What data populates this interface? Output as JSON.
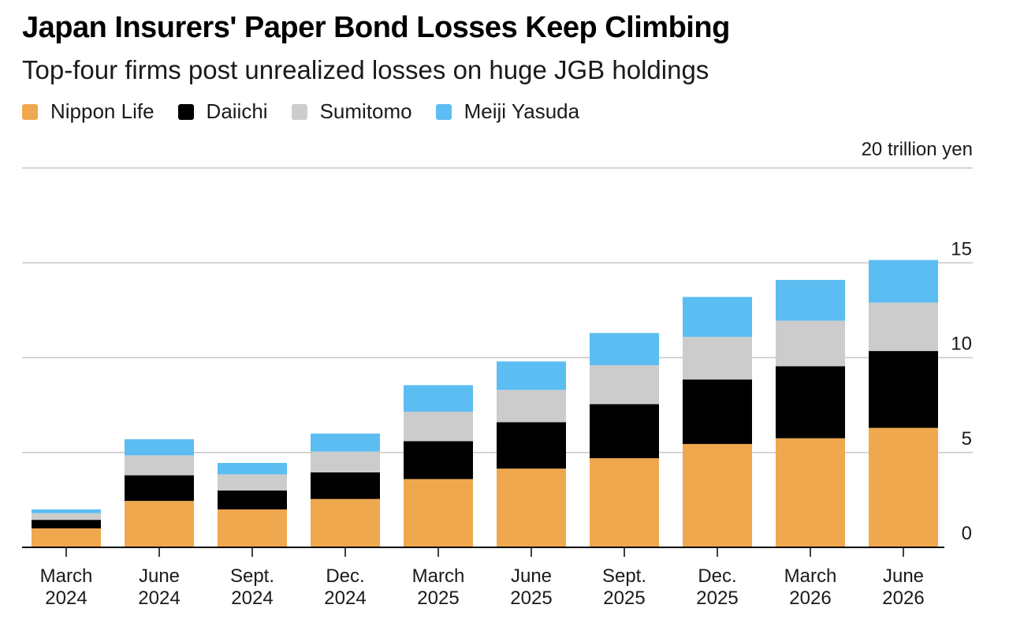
{
  "title": "Japan Insurers' Paper Bond Losses Keep Climbing",
  "subtitle": "Top-four firms post unrealized losses on huge JGB holdings",
  "unit_label": "20 trillion yen",
  "legend": [
    {
      "name": "Nippon Life",
      "color": "#EFA84E"
    },
    {
      "name": "Daiichi",
      "color": "#000000"
    },
    {
      "name": "Sumitomo",
      "color": "#CCCCCC"
    },
    {
      "name": "Meiji Yasuda",
      "color": "#5BBDF2"
    }
  ],
  "chart_data": {
    "type": "bar",
    "stacked": true,
    "categories": [
      [
        "March",
        "2024"
      ],
      [
        "June",
        "2024"
      ],
      [
        "Sept.",
        "2024"
      ],
      [
        "Dec.",
        "2024"
      ],
      [
        "March",
        "2025"
      ],
      [
        "June",
        "2025"
      ],
      [
        "Sept.",
        "2025"
      ],
      [
        "Dec.",
        "2025"
      ],
      [
        "March",
        "2026"
      ],
      [
        "June",
        "2026"
      ]
    ],
    "series": [
      {
        "name": "Nippon Life",
        "color": "#EFA84E",
        "values": [
          1.0,
          2.45,
          2.0,
          2.55,
          3.6,
          4.15,
          4.7,
          5.45,
          5.75,
          6.3
        ]
      },
      {
        "name": "Daiichi",
        "color": "#000000",
        "values": [
          0.45,
          1.35,
          1.0,
          1.4,
          2.0,
          2.45,
          2.85,
          3.4,
          3.8,
          4.05
        ]
      },
      {
        "name": "Sumitomo",
        "color": "#CCCCCC",
        "values": [
          0.35,
          1.05,
          0.85,
          1.1,
          1.55,
          1.7,
          2.05,
          2.25,
          2.4,
          2.55
        ]
      },
      {
        "name": "Meiji Yasuda",
        "color": "#5BBDF2",
        "values": [
          0.2,
          0.85,
          0.6,
          0.95,
          1.4,
          1.5,
          1.7,
          2.1,
          2.15,
          2.25
        ]
      }
    ],
    "yticks": [
      "0",
      "5",
      "10",
      "15"
    ],
    "ylim": [
      0,
      20
    ],
    "grid": true
  }
}
